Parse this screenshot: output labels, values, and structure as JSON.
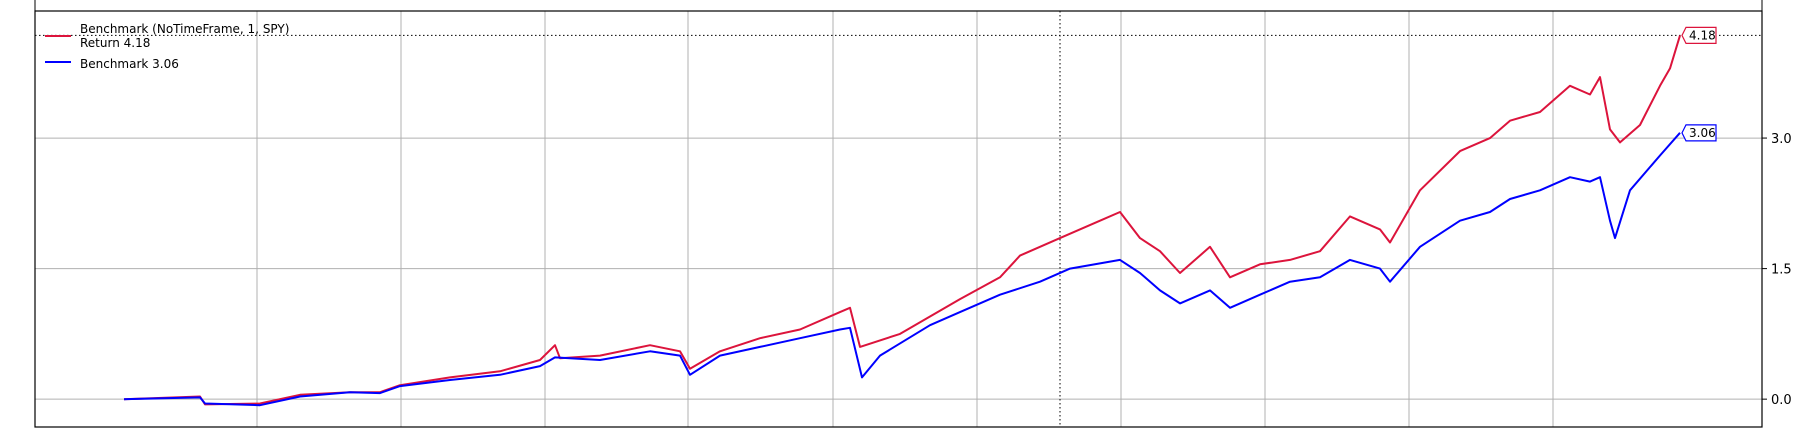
{
  "chart_data": {
    "type": "line",
    "title": "",
    "xlabel": "",
    "ylabel": "",
    "xlim": [
      -89,
      1638
    ],
    "ylim": [
      -0.32,
      4.46
    ],
    "yticks": [
      0.0,
      1.5,
      3.0
    ],
    "ytick_labels": [
      "0.0",
      "1.5",
      "3.0"
    ],
    "xgrid": [
      133,
      277,
      421,
      564,
      709,
      853,
      997,
      1141,
      1285,
      1429
    ],
    "grid": true,
    "crosshair": {
      "x": 936,
      "y": 4.18
    },
    "legend": {
      "placement": "top-left",
      "entries": [
        {
          "line1": "Benchmark (NoTimeFrame, 1, SPY)",
          "line2": "Return 4.18",
          "color": "#dc143c"
        },
        {
          "line1": "Benchmark 3.06",
          "color": "#0000ff"
        }
      ]
    },
    "series": [
      {
        "name": "Return",
        "color": "#dc143c",
        "last_label": "4.18",
        "x": [
          0,
          76,
          81,
          136,
          176,
          226,
          256,
          276,
          326,
          376,
          416,
          431,
          436,
          476,
          526,
          556,
          566,
          596,
          636,
          676,
          716,
          726,
          736,
          776,
          806,
          836,
          876,
          896,
          936,
          976,
          996,
          1016,
          1036,
          1056,
          1086,
          1106,
          1136,
          1166,
          1196,
          1226,
          1256,
          1266,
          1296,
          1336,
          1366,
          1386,
          1416,
          1446,
          1466,
          1476,
          1486,
          1496,
          1516,
          1536,
          1546,
          1556
        ],
        "y": [
          0,
          0.03,
          -0.06,
          -0.05,
          0.05,
          0.08,
          0.08,
          0.16,
          0.25,
          0.32,
          0.45,
          0.62,
          0.47,
          0.5,
          0.62,
          0.55,
          0.35,
          0.55,
          0.7,
          0.8,
          1.0,
          1.05,
          0.6,
          0.75,
          0.95,
          1.15,
          1.4,
          1.65,
          1.85,
          2.05,
          2.15,
          1.85,
          1.7,
          1.45,
          1.75,
          1.4,
          1.55,
          1.6,
          1.7,
          2.1,
          1.95,
          1.8,
          2.4,
          2.85,
          3.0,
          3.2,
          3.3,
          3.6,
          3.5,
          3.7,
          3.1,
          2.95,
          3.15,
          3.6,
          3.8,
          4.18
        ]
      },
      {
        "name": "Benchmark",
        "color": "#0000ff",
        "last_label": "3.06",
        "x": [
          0,
          76,
          81,
          136,
          176,
          226,
          256,
          276,
          326,
          376,
          416,
          431,
          476,
          526,
          556,
          566,
          596,
          636,
          676,
          716,
          726,
          738,
          756,
          806,
          836,
          876,
          916,
          946,
          996,
          1016,
          1036,
          1056,
          1086,
          1106,
          1136,
          1166,
          1196,
          1226,
          1256,
          1266,
          1296,
          1336,
          1366,
          1386,
          1416,
          1446,
          1466,
          1476,
          1486,
          1491,
          1506,
          1536,
          1556
        ],
        "y": [
          0,
          0.02,
          -0.05,
          -0.07,
          0.03,
          0.08,
          0.07,
          0.15,
          0.22,
          0.28,
          0.38,
          0.48,
          0.45,
          0.55,
          0.5,
          0.28,
          0.5,
          0.6,
          0.7,
          0.8,
          0.82,
          0.25,
          0.5,
          0.85,
          1.0,
          1.2,
          1.35,
          1.5,
          1.6,
          1.45,
          1.25,
          1.1,
          1.25,
          1.05,
          1.2,
          1.35,
          1.4,
          1.6,
          1.5,
          1.35,
          1.75,
          2.05,
          2.15,
          2.3,
          2.4,
          2.55,
          2.5,
          2.55,
          2.05,
          1.85,
          2.4,
          2.8,
          3.06
        ]
      }
    ]
  }
}
